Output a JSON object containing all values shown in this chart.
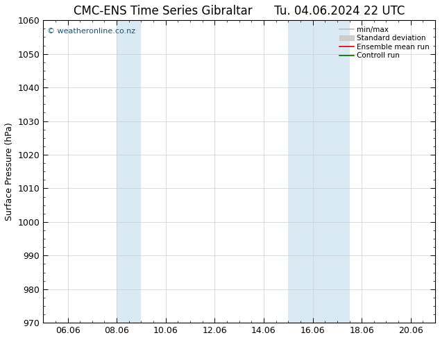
{
  "title": "CMC-ENS Time Series Gibraltar",
  "title2": "Tu. 04.06.2024 22 UTC",
  "ylabel": "Surface Pressure (hPa)",
  "ylim": [
    970,
    1060
  ],
  "yticks": [
    970,
    980,
    990,
    1000,
    1010,
    1020,
    1030,
    1040,
    1050,
    1060
  ],
  "xlim": [
    0,
    16
  ],
  "xtick_labels": [
    "06.06",
    "08.06",
    "10.06",
    "12.06",
    "14.06",
    "16.06",
    "18.06",
    "20.06"
  ],
  "xtick_positions": [
    1,
    3,
    5,
    7,
    9,
    11,
    13,
    15
  ],
  "shade_regions": [
    {
      "xmin": 3,
      "xmax": 4,
      "color": "#daeaf5"
    },
    {
      "xmin": 10,
      "xmax": 12.5,
      "color": "#daeaf5"
    }
  ],
  "watermark": "© weatheronline.co.nz",
  "watermark_color": "#1a5276",
  "background_color": "#ffffff",
  "plot_bg_color": "#ffffff",
  "legend_items": [
    {
      "label": "min/max",
      "color": "#bbbbbb",
      "lw": 1.2,
      "style": "-"
    },
    {
      "label": "Standard deviation",
      "color": "#cccccc",
      "lw": 8,
      "style": "-"
    },
    {
      "label": "Ensemble mean run",
      "color": "#cc0000",
      "lw": 1.2,
      "style": "-"
    },
    {
      "label": "Controll run",
      "color": "#006600",
      "lw": 1.2,
      "style": "-"
    }
  ],
  "grid_color": "#cccccc",
  "border_color": "#000000",
  "title_fontsize": 12,
  "axis_label_fontsize": 9,
  "tick_fontsize": 9
}
